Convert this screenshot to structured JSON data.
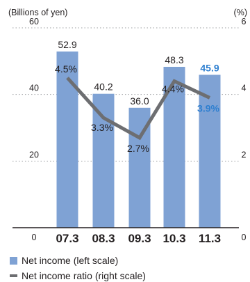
{
  "chart_data": {
    "type": "bar",
    "categories": [
      "07.3",
      "08.3",
      "09.3",
      "10.3",
      "11.3"
    ],
    "left_axis": {
      "label": "(Billions of yen)",
      "ylim": [
        0,
        60
      ],
      "ticks": [
        0,
        20,
        40,
        60
      ]
    },
    "right_axis": {
      "label": "(%)",
      "ylim": [
        0,
        6
      ],
      "ticks": [
        0,
        2,
        4,
        6
      ]
    },
    "series": [
      {
        "name": "Net income (left scale)",
        "type": "bar",
        "axis": "left",
        "values": [
          52.9,
          40.2,
          36.0,
          48.3,
          45.9
        ],
        "labels": [
          "52.9",
          "40.2",
          "36.0",
          "48.3",
          "45.9"
        ],
        "color": "#7fa2d4"
      },
      {
        "name": "Net income ratio (right scale)",
        "type": "line",
        "axis": "right",
        "values": [
          4.5,
          3.3,
          2.7,
          4.4,
          3.9
        ],
        "labels": [
          "4.5%",
          "3.3%",
          "2.7%",
          "4.4%",
          "3.9%"
        ],
        "color": "#6d6e71"
      }
    ],
    "highlight_index": 4,
    "highlight_color": "#2e7fd0",
    "grid": "dotted"
  }
}
